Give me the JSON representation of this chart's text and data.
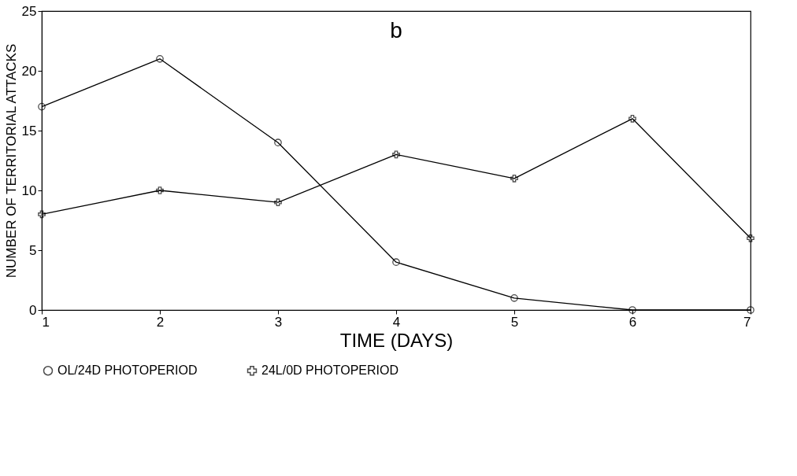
{
  "chart_data": {
    "type": "line",
    "title": "b",
    "xlabel": "TIME (DAYS)",
    "ylabel": "NUMBER OF TERRITORIAL ATTACKS",
    "x": [
      1,
      2,
      3,
      4,
      5,
      6,
      7
    ],
    "series": [
      {
        "name": "OL/24D PHOTOPERIOD",
        "color": "#000000",
        "marker": "circle",
        "values": [
          17,
          21,
          14,
          4,
          1,
          0,
          0
        ]
      },
      {
        "name": "24L/0D PHOTOPERIOD",
        "color": "#000000",
        "marker": "cross",
        "values": [
          8,
          10,
          9,
          13,
          11,
          16,
          6
        ]
      }
    ],
    "xlim": [
      1,
      7
    ],
    "xticks": [
      1,
      2,
      3,
      4,
      5,
      6,
      7
    ],
    "ylim": [
      0,
      25
    ],
    "yticks": [
      0,
      5,
      10,
      15,
      20,
      25
    ],
    "grid": false,
    "legend": "bottom",
    "line_style": "solid"
  }
}
